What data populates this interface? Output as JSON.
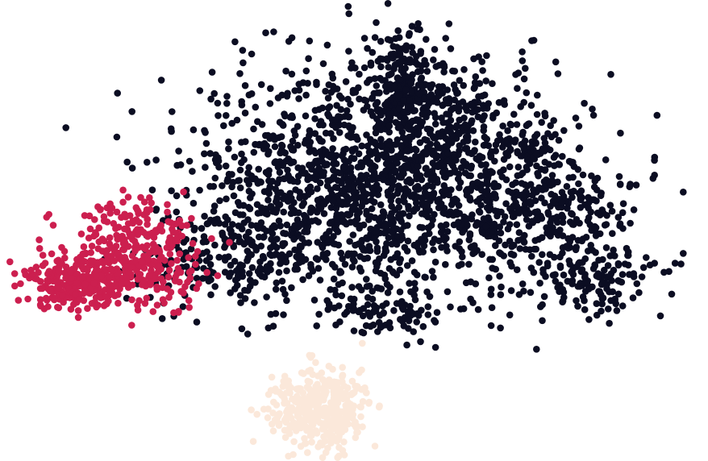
{
  "chart_data": {
    "type": "scatter",
    "title": "",
    "xlabel": "",
    "ylabel": "",
    "axes_visible": false,
    "grid": false,
    "legend": "none",
    "xlim": [
      0,
      100
    ],
    "ylim": [
      0,
      100
    ],
    "series": [
      {
        "color": "#0b0d22",
        "clusters": [
          {
            "center": [
              53,
              62
            ],
            "spread": [
              15,
              13
            ],
            "count": 1400
          },
          {
            "center": [
              62,
              78
            ],
            "spread": [
              8,
              8
            ],
            "count": 350
          },
          {
            "center": [
              58,
              88
            ],
            "spread": [
              2,
              5
            ],
            "count": 120
          },
          {
            "center": [
              80,
              56
            ],
            "spread": [
              8,
              6
            ],
            "count": 260
          },
          {
            "center": [
              88,
              40
            ],
            "spread": [
              5,
              4
            ],
            "count": 140
          },
          {
            "center": [
              33,
              46
            ],
            "spread": [
              8,
              6
            ],
            "count": 220
          },
          {
            "center": [
              56,
              33
            ],
            "spread": [
              5,
              3
            ],
            "count": 90
          },
          {
            "center": [
              78,
              71
            ],
            "spread": [
              3,
              2
            ],
            "count": 40
          }
        ]
      },
      {
        "color": "#cc1f4f",
        "clusters": [
          {
            "center": [
              8,
              40
            ],
            "spread": [
              4,
              3
            ],
            "count": 260
          },
          {
            "center": [
              17,
              46
            ],
            "spread": [
              5,
              6
            ],
            "count": 320
          }
        ]
      },
      {
        "color": "#fbe8da",
        "clusters": [
          {
            "center": [
              45,
              10
            ],
            "spread": [
              4,
              5
            ],
            "count": 380
          }
        ]
      }
    ]
  }
}
